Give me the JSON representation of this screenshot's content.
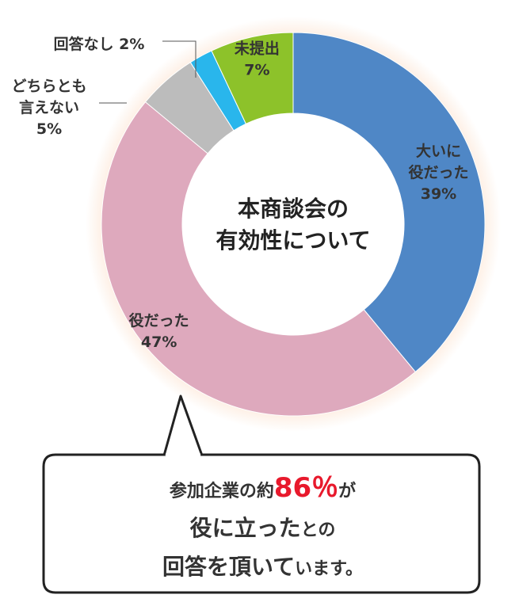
{
  "chart_data": {
    "type": "pie",
    "title": "本商談会の有効性について",
    "title_lines": [
      "本商談会の",
      "有効性について"
    ],
    "categories": [
      "大いに役だった",
      "役だった",
      "どちらとも言えない",
      "回答なし",
      "未提出"
    ],
    "values": [
      39,
      47,
      5,
      2,
      7
    ],
    "unit": "%",
    "colors": [
      "#4f87c6",
      "#dea9bd",
      "#bcbcbc",
      "#29b6ec",
      "#8dc22a"
    ],
    "slices": [
      {
        "name": "大いに役だった",
        "value": 39,
        "label_lines": [
          "大いに",
          "役だった",
          "39%"
        ]
      },
      {
        "name": "役だった",
        "value": 47,
        "label_lines": [
          "役だった",
          "47%"
        ]
      },
      {
        "name": "どちらとも言えない",
        "value": 5,
        "label_lines": [
          "どちらとも",
          "言えない",
          "5%"
        ]
      },
      {
        "name": "回答なし",
        "value": 2,
        "label_lines": [
          "回答なし 2%"
        ]
      },
      {
        "name": "未提出",
        "value": 7,
        "label_lines": [
          "未提出",
          "7%"
        ]
      }
    ]
  },
  "callout": {
    "line1_prefix": "参加企業の約",
    "line1_percent": "86％",
    "line1_suffix": "が",
    "line2_main": "役に立った",
    "line2_small": "との",
    "line3_main": "回答を頂いて",
    "line3_small": "います。"
  }
}
